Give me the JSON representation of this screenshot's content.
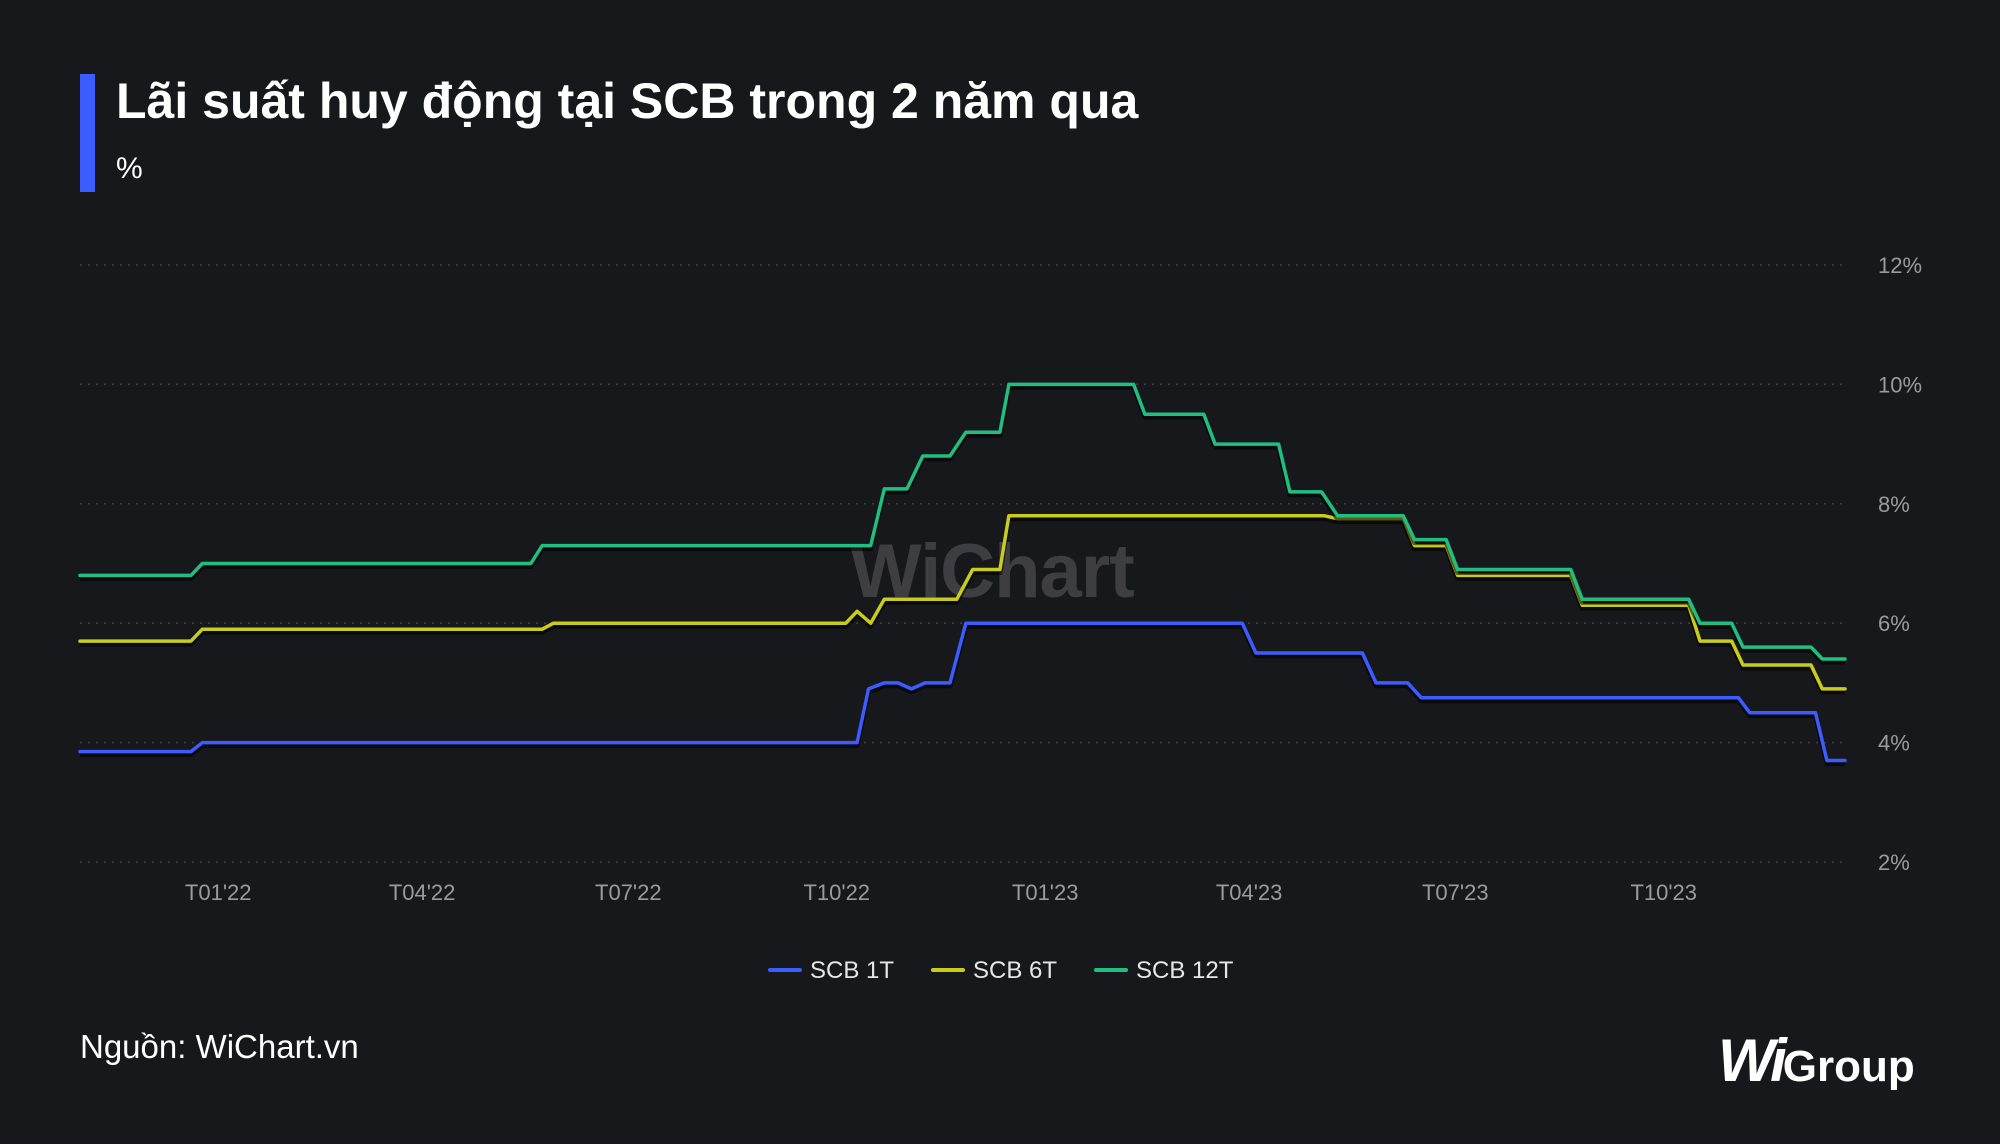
{
  "title": "Lãi suất huy động tại SCB trong 2 năm qua",
  "subtitle": "%",
  "source": "Nguồn: WiChart.vn",
  "watermark": "WiChart",
  "logo": {
    "mark": "Wi",
    "text": "Group"
  },
  "colors": {
    "background": "#17181c",
    "accent": "#3b5cff",
    "scb1t": "#3b5cff",
    "scb6t": "#c8cc1a",
    "scb12t": "#1fbf84",
    "grid": "#3c3d44",
    "tick": "#9a9ba0"
  },
  "chart_data": {
    "type": "line",
    "title": "Lãi suất huy động tại SCB trong 2 năm qua",
    "ylabel": "%",
    "xlabel": "",
    "x_ticks": [
      "T01'22",
      "T04'22",
      "T07'22",
      "T10'22",
      "T01'23",
      "T04'23",
      "T07'23",
      "T10'23"
    ],
    "x_tick_dates": [
      "2022-01-01",
      "2022-04-01",
      "2022-07-01",
      "2022-10-01",
      "2023-01-01",
      "2023-04-01",
      "2023-07-01",
      "2023-10-01"
    ],
    "y_ticks": [
      "2%",
      "4%",
      "6%",
      "8%",
      "10%",
      "12%"
    ],
    "ylim": [
      2,
      12
    ],
    "xlim": [
      "2021-11-01",
      "2023-12-20"
    ],
    "grid": true,
    "y_axis_side": "right",
    "legend": "bottom-center",
    "series": [
      {
        "name": "SCB 1T",
        "color": "#3b5cff",
        "points": [
          [
            "2021-11-01",
            3.85
          ],
          [
            "2021-12-20",
            3.85
          ],
          [
            "2021-12-25",
            4.0
          ],
          [
            "2022-10-10",
            4.0
          ],
          [
            "2022-10-15",
            4.9
          ],
          [
            "2022-10-22",
            5.0
          ],
          [
            "2022-10-28",
            5.0
          ],
          [
            "2022-11-03",
            4.9
          ],
          [
            "2022-11-09",
            5.0
          ],
          [
            "2022-11-20",
            5.0
          ],
          [
            "2022-11-27",
            6.0
          ],
          [
            "2023-03-29",
            6.0
          ],
          [
            "2023-04-04",
            5.5
          ],
          [
            "2023-05-21",
            5.5
          ],
          [
            "2023-05-27",
            5.0
          ],
          [
            "2023-06-10",
            5.0
          ],
          [
            "2023-06-16",
            4.75
          ],
          [
            "2023-11-03",
            4.75
          ],
          [
            "2023-11-08",
            4.5
          ],
          [
            "2023-12-07",
            4.5
          ],
          [
            "2023-12-12",
            3.7
          ],
          [
            "2023-12-20",
            3.7
          ]
        ]
      },
      {
        "name": "SCB 6T",
        "color": "#c8cc1a",
        "points": [
          [
            "2021-11-01",
            5.7
          ],
          [
            "2021-12-20",
            5.7
          ],
          [
            "2021-12-25",
            5.9
          ],
          [
            "2022-05-24",
            5.9
          ],
          [
            "2022-05-29",
            6.0
          ],
          [
            "2022-10-05",
            6.0
          ],
          [
            "2022-10-10",
            6.2
          ],
          [
            "2022-10-16",
            6.0
          ],
          [
            "2022-10-22",
            6.4
          ],
          [
            "2022-11-23",
            6.4
          ],
          [
            "2022-11-30",
            6.9
          ],
          [
            "2022-12-12",
            6.9
          ],
          [
            "2022-12-16",
            7.8
          ],
          [
            "2023-05-04",
            7.8
          ],
          [
            "2023-05-10",
            7.75
          ],
          [
            "2023-06-08",
            7.75
          ],
          [
            "2023-06-13",
            7.3
          ],
          [
            "2023-06-27",
            7.3
          ],
          [
            "2023-07-02",
            6.8
          ],
          [
            "2023-08-21",
            6.8
          ],
          [
            "2023-08-26",
            6.3
          ],
          [
            "2023-10-12",
            6.3
          ],
          [
            "2023-10-17",
            5.7
          ],
          [
            "2023-10-31",
            5.7
          ],
          [
            "2023-11-05",
            5.3
          ],
          [
            "2023-12-05",
            5.3
          ],
          [
            "2023-12-10",
            4.9
          ],
          [
            "2023-12-20",
            4.9
          ]
        ]
      },
      {
        "name": "SCB 12T",
        "color": "#1fbf84",
        "points": [
          [
            "2021-11-01",
            6.8
          ],
          [
            "2021-12-20",
            6.8
          ],
          [
            "2021-12-25",
            7.0
          ],
          [
            "2022-05-19",
            7.0
          ],
          [
            "2022-05-24",
            7.3
          ],
          [
            "2022-10-16",
            7.3
          ],
          [
            "2022-10-22",
            8.25
          ],
          [
            "2022-11-01",
            8.25
          ],
          [
            "2022-11-08",
            8.8
          ],
          [
            "2022-11-20",
            8.8
          ],
          [
            "2022-11-27",
            9.2
          ],
          [
            "2022-12-12",
            9.2
          ],
          [
            "2022-12-16",
            10.0
          ],
          [
            "2023-02-09",
            10.0
          ],
          [
            "2023-02-14",
            9.5
          ],
          [
            "2023-03-12",
            9.5
          ],
          [
            "2023-03-17",
            9.0
          ],
          [
            "2023-04-14",
            9.0
          ],
          [
            "2023-04-19",
            8.2
          ],
          [
            "2023-05-03",
            8.2
          ],
          [
            "2023-05-10",
            7.8
          ],
          [
            "2023-06-08",
            7.8
          ],
          [
            "2023-06-13",
            7.4
          ],
          [
            "2023-06-27",
            7.4
          ],
          [
            "2023-07-02",
            6.9
          ],
          [
            "2023-08-21",
            6.9
          ],
          [
            "2023-08-26",
            6.4
          ],
          [
            "2023-10-12",
            6.4
          ],
          [
            "2023-10-17",
            6.0
          ],
          [
            "2023-10-31",
            6.0
          ],
          [
            "2023-11-05",
            5.6
          ],
          [
            "2023-12-05",
            5.6
          ],
          [
            "2023-12-10",
            5.4
          ],
          [
            "2023-12-20",
            5.4
          ]
        ]
      }
    ]
  }
}
